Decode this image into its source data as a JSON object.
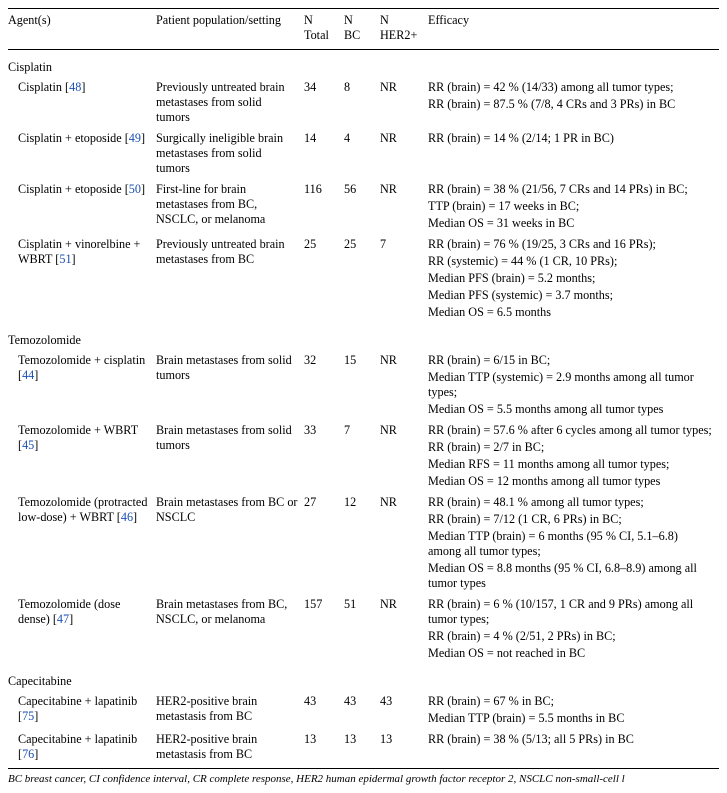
{
  "headers": {
    "agent": "Agent(s)",
    "population": "Patient population/setting",
    "ntotal_top": "N",
    "ntotal_bot": "Total",
    "nbc_top": "N",
    "nbc_bot": "BC",
    "nher2_top": "N",
    "nher2_bot": "HER2+",
    "efficacy": "Efficacy"
  },
  "groups": [
    {
      "title": "Cisplatin",
      "rows": [
        {
          "agent_pre": "Cisplatin [",
          "ref": "48",
          "agent_post": "]",
          "population": "Previously untreated brain metastases from solid tumors",
          "ntotal": "34",
          "nbc": "8",
          "nher2": "NR",
          "efficacy": [
            "RR (brain) = 42 % (14/33) among all tumor types;",
            "RR (brain) = 87.5 % (7/8, 4 CRs and 3 PRs) in BC"
          ]
        },
        {
          "agent_pre": "Cisplatin + etoposide [",
          "ref": "49",
          "agent_post": "]",
          "population": "Surgically ineligible brain metastases from solid tumors",
          "ntotal": "14",
          "nbc": "4",
          "nher2": "NR",
          "efficacy": [
            "RR (brain) = 14 % (2/14; 1 PR in BC)"
          ]
        },
        {
          "agent_pre": "Cisplatin + etoposide [",
          "ref": "50",
          "agent_post": "]",
          "population": "First-line for brain metastases from BC, NSCLC, or melanoma",
          "ntotal": "116",
          "nbc": "56",
          "nher2": "NR",
          "efficacy": [
            "RR (brain) = 38 % (21/56, 7 CRs and 14 PRs) in BC;",
            "TTP (brain) = 17 weeks in BC;",
            "Median OS = 31 weeks in BC"
          ]
        },
        {
          "agent_pre": "Cisplatin + vinorelbine + WBRT [",
          "ref": "51",
          "agent_post": "]",
          "population": "Previously untreated brain metastases from BC",
          "ntotal": "25",
          "nbc": "25",
          "nher2": "7",
          "efficacy": [
            "RR (brain) = 76 % (19/25, 3 CRs and 16 PRs);",
            "RR (systemic) = 44 % (1 CR, 10 PRs);",
            "Median PFS (brain) = 5.2 months;",
            "Median PFS (systemic) = 3.7 months;",
            "Median OS = 6.5 months"
          ]
        }
      ]
    },
    {
      "title": "Temozolomide",
      "rows": [
        {
          "agent_pre": "Temozolomide + cisplatin [",
          "ref": "44",
          "agent_post": "]",
          "population": "Brain metastases from solid tumors",
          "ntotal": "32",
          "nbc": "15",
          "nher2": "NR",
          "efficacy": [
            "RR (brain) = 6/15 in BC;",
            "Median TTP (systemic) = 2.9 months among all tumor types;",
            "Median OS = 5.5 months among all tumor types"
          ]
        },
        {
          "agent_pre": "Temozolomide + WBRT [",
          "ref": "45",
          "agent_post": "]",
          "population": "Brain metastases from solid tumors",
          "ntotal": "33",
          "nbc": "7",
          "nher2": "NR",
          "efficacy": [
            "RR (brain) = 57.6 % after 6 cycles among all tumor types;",
            "RR (brain) = 2/7 in BC;",
            "Median RFS = 11 months among all tumor types;",
            "Median OS = 12 months among all tumor types"
          ]
        },
        {
          "agent_pre": "Temozolomide (protracted low-dose) + WBRT [",
          "ref": "46",
          "agent_post": "]",
          "population": "Brain metastases from BC or NSCLC",
          "ntotal": "27",
          "nbc": "12",
          "nher2": "NR",
          "efficacy": [
            "RR (brain) = 48.1 % among all tumor types;",
            "RR (brain) = 7/12 (1 CR, 6 PRs) in BC;",
            "Median TTP (brain) = 6 months (95 % CI, 5.1–6.8) among all tumor types;",
            "Median OS = 8.8 months (95 % CI, 6.8–8.9) among all tumor types"
          ]
        },
        {
          "agent_pre": "Temozolomide (dose dense) [",
          "ref": "47",
          "agent_post": "]",
          "population": "Brain metastases from BC, NSCLC, or melanoma",
          "ntotal": "157",
          "nbc": "51",
          "nher2": "NR",
          "efficacy": [
            "RR (brain) = 6 % (10/157, 1 CR and 9 PRs) among all tumor types;",
            "RR (brain) = 4 % (2/51, 2 PRs) in BC;",
            "Median OS = not reached in BC"
          ]
        }
      ]
    },
    {
      "title": "Capecitabine",
      "rows": [
        {
          "agent_pre": "Capecitabine + lapatinib [",
          "ref": "75",
          "agent_post": "]",
          "population": "HER2-positive brain metastasis from BC",
          "ntotal": "43",
          "nbc": "43",
          "nher2": "43",
          "efficacy": [
            "RR (brain) = 67 % in BC;",
            "Median TTP (brain) = 5.5 months in BC"
          ]
        },
        {
          "agent_pre": "Capecitabine + lapatinib [",
          "ref": "76",
          "agent_post": "]",
          "population": "HER2-positive brain metastasis from BC",
          "ntotal": "13",
          "nbc": "13",
          "nher2": "13",
          "efficacy": [
            "RR (brain) = 38 % (5/13; all 5 PRs) in BC"
          ]
        }
      ]
    }
  ],
  "footnote": "BC breast cancer, CI confidence interval, CR complete response, HER2 human epidermal growth factor receptor 2, NSCLC non-small-cell l"
}
